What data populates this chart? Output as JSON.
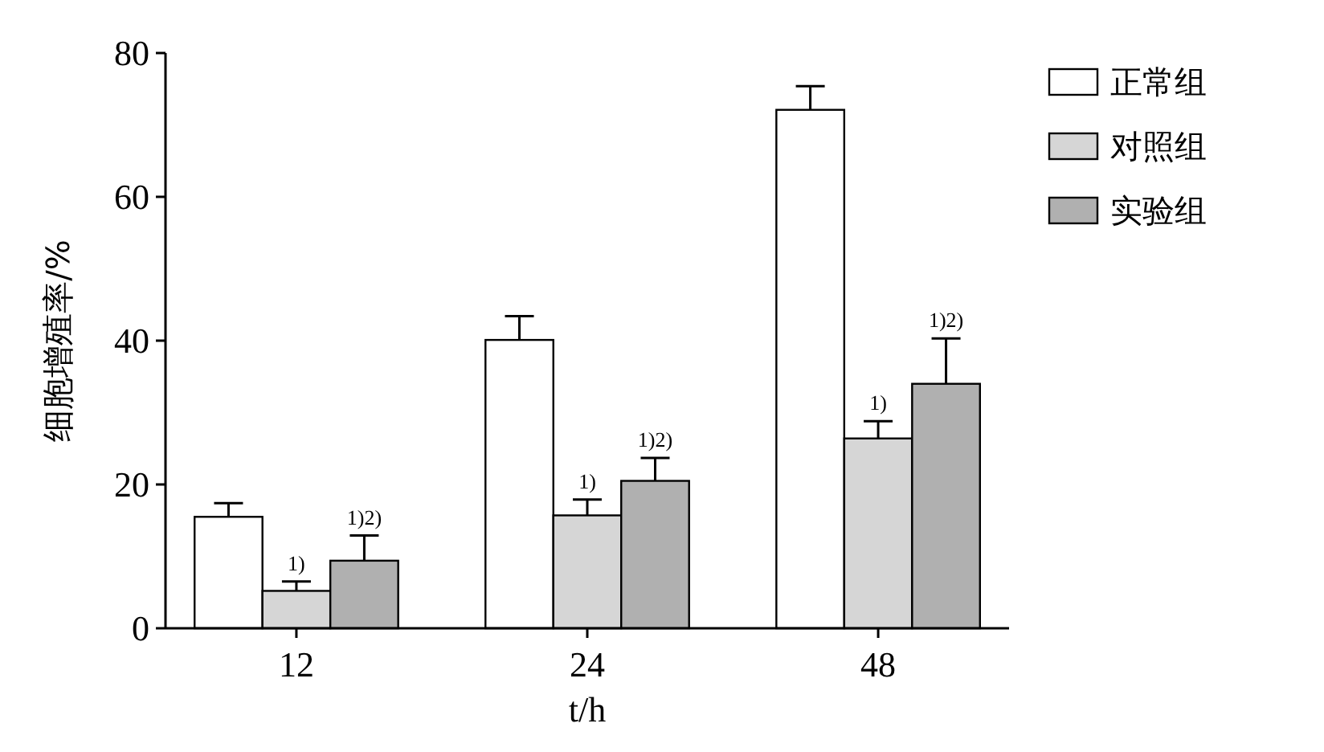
{
  "chart_data": {
    "type": "bar",
    "xlabel": "t/h",
    "ylabel": "细胞增殖率/%",
    "categories": [
      "12",
      "24",
      "48"
    ],
    "series": [
      {
        "name": "正常组",
        "color": "#ffffff",
        "values": [
          15.5,
          40.1,
          72.1
        ],
        "errors": [
          1.9,
          3.3,
          3.3
        ]
      },
      {
        "name": "对照组",
        "color": "#d6d6d6",
        "values": [
          5.2,
          15.7,
          26.4
        ],
        "errors": [
          1.3,
          2.2,
          2.4
        ]
      },
      {
        "name": "实验组",
        "color": "#b0b0b0",
        "values": [
          9.4,
          20.5,
          34.0
        ],
        "errors": [
          3.5,
          3.2,
          6.3
        ]
      }
    ],
    "ylim": [
      0,
      80
    ],
    "yticks": [
      0,
      20,
      40,
      60,
      80
    ],
    "grid": false,
    "legend": "top right",
    "annotations": [
      {
        "text": "1)",
        "x": "12",
        "y": 6.5
      },
      "1)2)",
      {
        "text": "1)",
        "x": "24",
        "y": 17.9
      },
      "1)2)",
      {
        "text": "1)",
        "x": "48",
        "y": 28.8
      },
      "1)2)"
    ]
  }
}
